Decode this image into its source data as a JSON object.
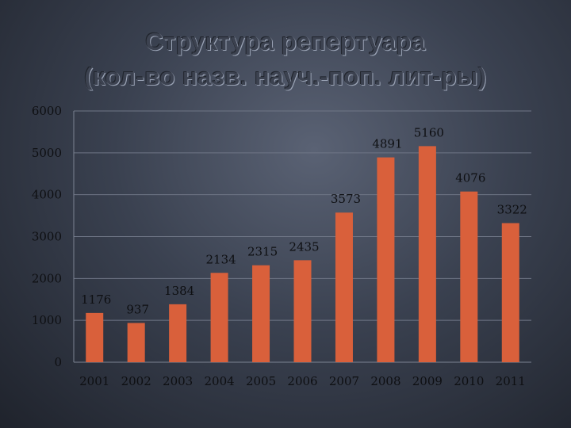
{
  "chart_data": {
    "type": "bar",
    "title": "Структура репертуара",
    "subtitle": "(кол-во назв. науч.-поп. лит-ры)",
    "categories": [
      "2001",
      "2002",
      "2003",
      "2004",
      "2005",
      "2006",
      "2007",
      "2008",
      "2009",
      "2010",
      "2011"
    ],
    "values": [
      1176,
      937,
      1384,
      2134,
      2315,
      2435,
      3573,
      4891,
      5160,
      4076,
      3322
    ],
    "ylim": [
      0,
      6000
    ],
    "yticks": [
      0,
      1000,
      2000,
      3000,
      4000,
      5000,
      6000
    ],
    "grid": true,
    "bar_color": "#d9603b",
    "xlabel": "",
    "ylabel": ""
  }
}
